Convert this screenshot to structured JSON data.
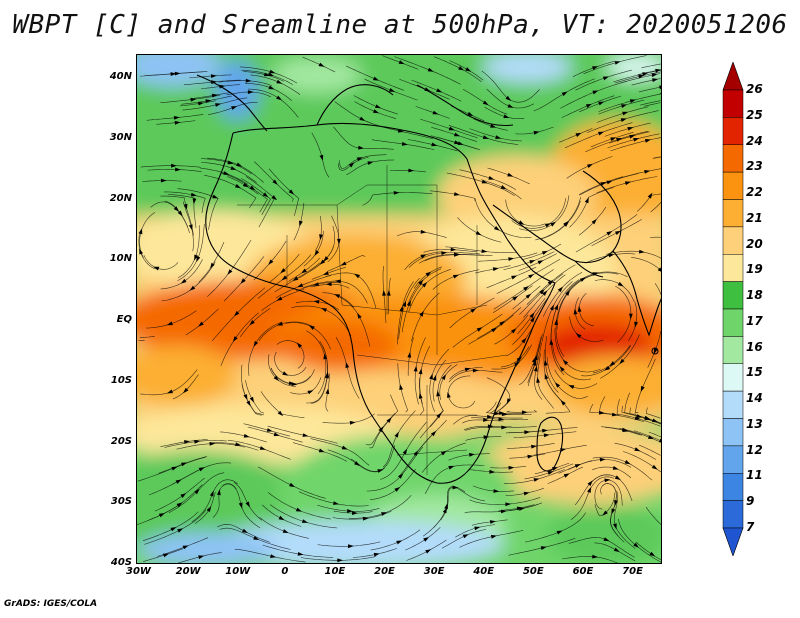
{
  "title": "WBPT [C] and Sreamline at 500hPa, VT: 2020051206",
  "footer": "GrADS: IGES/COLA",
  "map": {
    "lon_range": [
      -30,
      76
    ],
    "lat_range": [
      -40,
      44
    ],
    "lon_ticks": [
      "30W",
      "20W",
      "10W",
      "0",
      "10E",
      "20E",
      "30E",
      "40E",
      "50E",
      "60E",
      "70E"
    ],
    "lat_ticks": [
      "40N",
      "30N",
      "20N",
      "10N",
      "EQ",
      "10S",
      "20S",
      "30S",
      "40S"
    ],
    "fields": [
      "wet-bulb potential temperature",
      "streamlines"
    ]
  },
  "colorbar": {
    "labels": [
      "26",
      "25",
      "24",
      "23",
      "22",
      "21",
      "20",
      "19",
      "18",
      "17",
      "16",
      "15",
      "14",
      "13",
      "12",
      "11",
      "9",
      "7"
    ],
    "colors": {
      "top_arrow": "#a50000",
      "bins": [
        "#c20000",
        "#e32400",
        "#f56a00",
        "#fb9210",
        "#fcaf33",
        "#fdd079",
        "#fde79a",
        "#3fbf3f",
        "#6fd56a",
        "#a3e8a0",
        "#ddf9f6",
        "#b3dcfa",
        "#8ec3f6",
        "#62a5ec",
        "#3d85e2",
        "#2b6ad8"
      ],
      "bottom_arrow": "#1f55d0"
    }
  }
}
